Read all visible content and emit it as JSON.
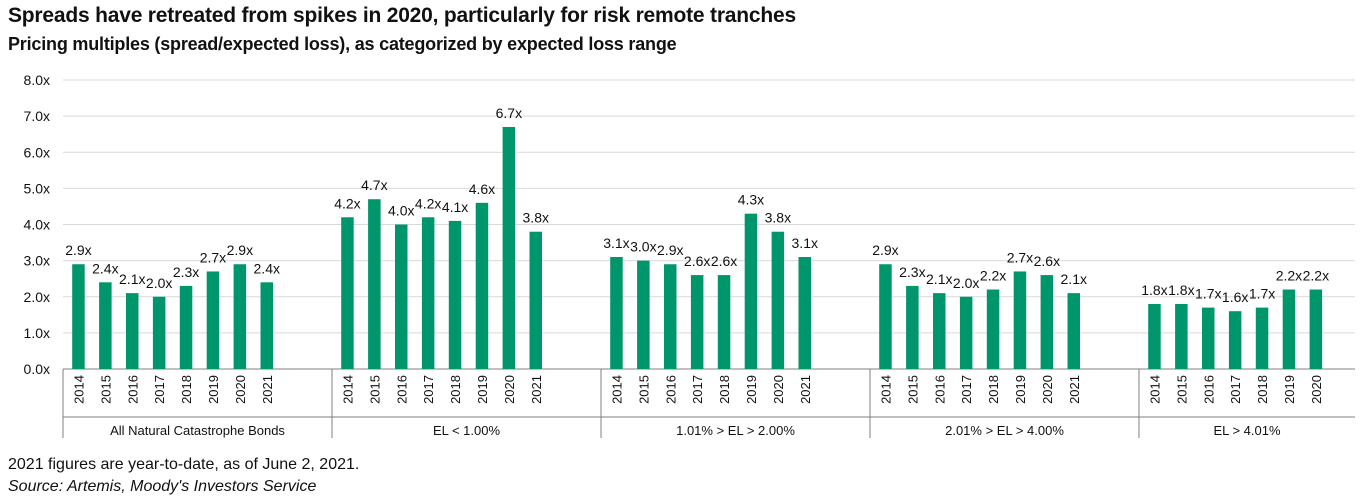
{
  "title": "Spreads have retreated from spikes in 2020, particularly for risk remote tranches",
  "subtitle": "Pricing multiples (spread/expected loss), as categorized by expected loss range",
  "footnote": "2021 figures are year-to-date, as of June 2, 2021.",
  "source": "Source: Artemis, Moody's Investors Service",
  "colors": {
    "bar": "#00966c",
    "grid": "#d9d9d9",
    "axis": "#808080"
  },
  "chart_data": {
    "type": "bar",
    "ylim": [
      0,
      8
    ],
    "yticks": [
      "0.0x",
      "1.0x",
      "2.0x",
      "3.0x",
      "4.0x",
      "5.0x",
      "6.0x",
      "7.0x",
      "8.0x"
    ],
    "grid": true,
    "groups": [
      {
        "label": "All Natural Catastrophe Bonds",
        "categories": [
          "2014",
          "2015",
          "2016",
          "2017",
          "2018",
          "2019",
          "2020",
          "2021"
        ],
        "values": [
          2.9,
          2.4,
          2.1,
          2.0,
          2.3,
          2.7,
          2.9,
          2.4
        ],
        "labels": [
          "2.9x",
          "2.4x",
          "2.1x",
          "2.0x",
          "2.3x",
          "2.7x",
          "2.9x",
          "2.4x"
        ]
      },
      {
        "label": "EL < 1.00%",
        "categories": [
          "2014",
          "2015",
          "2016",
          "2017",
          "2018",
          "2019",
          "2020",
          "2021"
        ],
        "values": [
          4.2,
          4.7,
          4.0,
          4.2,
          4.1,
          4.6,
          6.7,
          3.8
        ],
        "labels": [
          "4.2x",
          "4.7x",
          "4.0x",
          "4.2x",
          "4.1x",
          "4.6x",
          "6.7x",
          "3.8x"
        ]
      },
      {
        "label": "1.01% > EL > 2.00%",
        "categories": [
          "2014",
          "2015",
          "2016",
          "2017",
          "2018",
          "2019",
          "2020",
          "2021"
        ],
        "values": [
          3.1,
          3.0,
          2.9,
          2.6,
          2.6,
          4.3,
          3.8,
          3.1
        ],
        "labels": [
          "3.1x",
          "3.0x",
          "2.9x",
          "2.6x",
          "2.6x",
          "4.3x",
          "3.8x",
          "3.1x"
        ]
      },
      {
        "label": "2.01% > EL > 4.00%",
        "categories": [
          "2014",
          "2015",
          "2016",
          "2017",
          "2018",
          "2019",
          "2020",
          "2021"
        ],
        "values": [
          2.9,
          2.3,
          2.1,
          2.0,
          2.2,
          2.7,
          2.6,
          2.1
        ],
        "labels": [
          "2.9x",
          "2.3x",
          "2.1x",
          "2.0x",
          "2.2x",
          "2.7x",
          "2.6x",
          "2.1x"
        ]
      },
      {
        "label": "EL > 4.01%",
        "categories": [
          "2014",
          "2015",
          "2016",
          "2017",
          "2018",
          "2019",
          "2020"
        ],
        "values": [
          1.8,
          1.8,
          1.7,
          1.6,
          1.7,
          2.2,
          2.2
        ],
        "labels": [
          "1.8x",
          "1.8x",
          "1.7x",
          "1.6x",
          "1.7x",
          "2.2x",
          "2.2x"
        ]
      }
    ]
  }
}
